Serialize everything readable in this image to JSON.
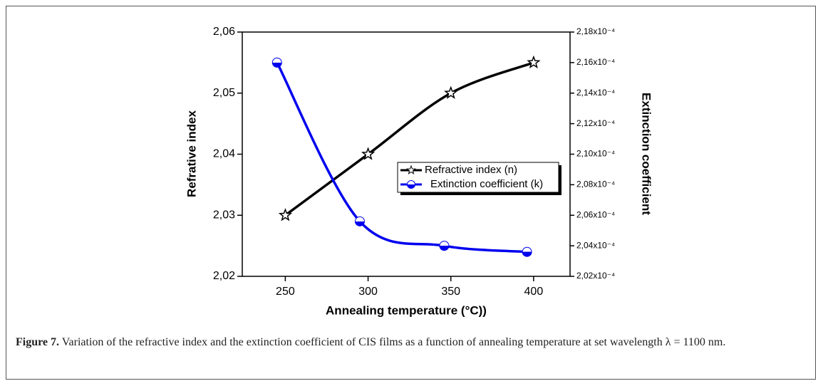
{
  "chart_data": {
    "type": "line",
    "x_label": "Annealing temperature (°C))",
    "y_label": "Refrative index",
    "y2_label": "Extinction coefficient",
    "xlim": [
      224,
      422
    ],
    "xticks": [
      250,
      300,
      350,
      400
    ],
    "ylim": [
      2.02,
      2.06
    ],
    "yticks": [
      {
        "value": 2.02,
        "label": "2,02"
      },
      {
        "value": 2.03,
        "label": "2,03"
      },
      {
        "value": 2.04,
        "label": "2,04"
      },
      {
        "value": 2.05,
        "label": "2,05"
      },
      {
        "value": 2.06,
        "label": "2,06"
      }
    ],
    "y2lim": [
      0.000202,
      0.000218
    ],
    "y2ticks": [
      {
        "value": 0.000202,
        "label": "2,02x10⁻⁴"
      },
      {
        "value": 0.000204,
        "label": "2,04x10⁻⁴"
      },
      {
        "value": 0.000206,
        "label": "2,06x10⁻⁴"
      },
      {
        "value": 0.000208,
        "label": "2,08x10⁻⁴"
      },
      {
        "value": 0.00021,
        "label": "2,10x10⁻⁴"
      },
      {
        "value": 0.000212,
        "label": "2,12x10⁻⁴"
      },
      {
        "value": 0.000214,
        "label": "2,14x10⁻⁴"
      },
      {
        "value": 0.000216,
        "label": "2,16x10⁻⁴"
      },
      {
        "value": 0.000218,
        "label": "2,18x10⁻⁴"
      }
    ],
    "series": [
      {
        "name": "Refractive index (n)",
        "color": "#000000",
        "marker": "star",
        "x": [
          250,
          300,
          350,
          400
        ],
        "values": [
          2.03,
          2.04,
          2.05,
          2.055
        ]
      },
      {
        "name": "Extinction coefficient (k)",
        "color": "#0000ee",
        "marker": "half-circle",
        "axis": "y2",
        "x": [
          245,
          295,
          346,
          396
        ],
        "values": [
          0.000216,
          0.0002056,
          0.000204,
          0.0002036
        ]
      }
    ],
    "caption_label": "Figure 7.",
    "caption": "Variation of the refractive index and the extinction coefficient of CIS films as a function of annealing temperature at set wavelength λ = 1100 nm."
  }
}
